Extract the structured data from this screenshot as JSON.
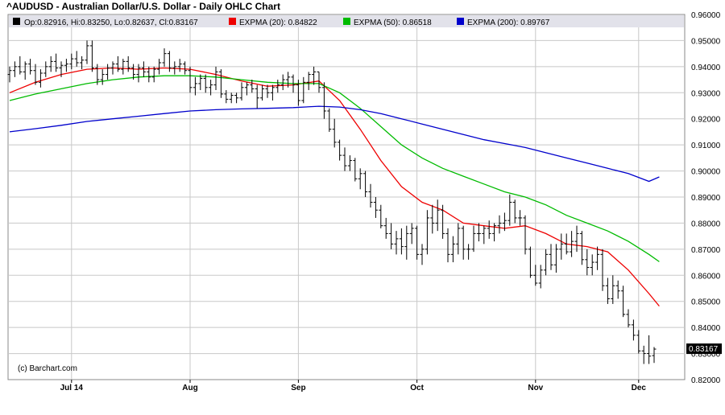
{
  "page_title": "^AUDUSD - Australian Dollar/U.S. Dollar - Daily OHLC Chart",
  "legend": {
    "ohlc_text": "Op:0.82916, Hi:0.83250, Lo:0.82637, Cl:0.83167",
    "ema20_text": "EXPMA (20): 0.84822",
    "ema50_text": "EXPMA (50): 0.86518",
    "ema200_text": "EXPMA (200): 0.89767"
  },
  "credit": "(c) Barchart.com",
  "last_price_label": "0.83167",
  "colors": {
    "background": "#ffffff",
    "legend_background": "#e2e2ea",
    "grid": "#c8c8c8",
    "ohlc": "#000000",
    "ema20": "#ee0000",
    "ema50": "#00bb00",
    "ema200": "#0000cc"
  },
  "chart_data": {
    "type": "line",
    "subtype": "ohlc",
    "title": "^AUDUSD - Australian Dollar/U.S. Dollar - Daily OHLC Chart",
    "x_tick_labels": [
      "Jul 14",
      "Aug",
      "Sep",
      "Oct",
      "Nov",
      "Dec"
    ],
    "x_tick_positions": [
      12,
      35,
      56,
      79,
      102,
      122
    ],
    "y_ticks": [
      "0.96000",
      "0.95000",
      "0.94000",
      "0.93000",
      "0.92000",
      "0.91000",
      "0.90000",
      "0.89000",
      "0.88000",
      "0.87000",
      "0.86000",
      "0.85000",
      "0.84000",
      "0.83000",
      "0.82000"
    ],
    "ylim": [
      0.82,
      0.96
    ],
    "grid": true,
    "ohlc": [
      [
        0.937,
        0.94,
        0.934,
        0.9385
      ],
      [
        0.9385,
        0.942,
        0.936,
        0.94
      ],
      [
        0.94,
        0.944,
        0.937,
        0.938
      ],
      [
        0.938,
        0.942,
        0.935,
        0.941
      ],
      [
        0.941,
        0.943,
        0.937,
        0.9385
      ],
      [
        0.9385,
        0.941,
        0.933,
        0.934
      ],
      [
        0.934,
        0.939,
        0.932,
        0.9375
      ],
      [
        0.9375,
        0.942,
        0.936,
        0.94
      ],
      [
        0.94,
        0.944,
        0.938,
        0.942
      ],
      [
        0.942,
        0.945,
        0.938,
        0.9395
      ],
      [
        0.9395,
        0.942,
        0.936,
        0.9405
      ],
      [
        0.9405,
        0.943,
        0.938,
        0.941
      ],
      [
        0.941,
        0.945,
        0.939,
        0.943
      ],
      [
        0.943,
        0.946,
        0.94,
        0.9415
      ],
      [
        0.9415,
        0.944,
        0.939,
        0.9425
      ],
      [
        0.9425,
        0.95,
        0.941,
        0.948
      ],
      [
        0.948,
        0.95,
        0.938,
        0.9395
      ],
      [
        0.9395,
        0.941,
        0.933,
        0.935
      ],
      [
        0.935,
        0.939,
        0.933,
        0.937
      ],
      [
        0.937,
        0.941,
        0.935,
        0.9395
      ],
      [
        0.9395,
        0.942,
        0.937,
        0.941
      ],
      [
        0.941,
        0.944,
        0.938,
        0.939
      ],
      [
        0.939,
        0.943,
        0.937,
        0.942
      ],
      [
        0.942,
        0.944,
        0.938,
        0.9395
      ],
      [
        0.9395,
        0.941,
        0.935,
        0.937
      ],
      [
        0.937,
        0.941,
        0.934,
        0.9395
      ],
      [
        0.9395,
        0.942,
        0.936,
        0.938
      ],
      [
        0.938,
        0.94,
        0.934,
        0.936
      ],
      [
        0.936,
        0.94,
        0.934,
        0.939
      ],
      [
        0.939,
        0.943,
        0.937,
        0.9415
      ],
      [
        0.9415,
        0.947,
        0.94,
        0.945
      ],
      [
        0.945,
        0.946,
        0.938,
        0.9395
      ],
      [
        0.9395,
        0.942,
        0.937,
        0.94
      ],
      [
        0.94,
        0.943,
        0.938,
        0.941
      ],
      [
        0.941,
        0.942,
        0.937,
        0.9385
      ],
      [
        0.9385,
        0.94,
        0.93,
        0.932
      ],
      [
        0.932,
        0.936,
        0.929,
        0.9335
      ],
      [
        0.9335,
        0.937,
        0.931,
        0.9355
      ],
      [
        0.9355,
        0.937,
        0.93,
        0.932
      ],
      [
        0.932,
        0.935,
        0.929,
        0.933
      ],
      [
        0.933,
        0.94,
        0.931,
        0.938
      ],
      [
        0.938,
        0.939,
        0.928,
        0.9295
      ],
      [
        0.9295,
        0.931,
        0.926,
        0.9275
      ],
      [
        0.9275,
        0.93,
        0.926,
        0.929
      ],
      [
        0.929,
        0.93,
        0.926,
        0.928
      ],
      [
        0.928,
        0.934,
        0.927,
        0.932
      ],
      [
        0.932,
        0.934,
        0.929,
        0.933
      ],
      [
        0.933,
        0.935,
        0.93,
        0.9315
      ],
      [
        0.9315,
        0.933,
        0.924,
        0.928
      ],
      [
        0.928,
        0.933,
        0.927,
        0.9315
      ],
      [
        0.9315,
        0.933,
        0.928,
        0.93
      ],
      [
        0.93,
        0.933,
        0.927,
        0.932
      ],
      [
        0.932,
        0.935,
        0.93,
        0.933
      ],
      [
        0.933,
        0.937,
        0.931,
        0.935
      ],
      [
        0.935,
        0.938,
        0.932,
        0.936
      ],
      [
        0.936,
        0.937,
        0.93,
        0.933
      ],
      [
        0.933,
        0.935,
        0.925,
        0.927
      ],
      [
        0.927,
        0.936,
        0.926,
        0.934
      ],
      [
        0.934,
        0.938,
        0.931,
        0.937
      ],
      [
        0.937,
        0.94,
        0.933,
        0.938
      ],
      [
        0.938,
        0.938,
        0.93,
        0.932
      ],
      [
        0.932,
        0.934,
        0.92,
        0.923
      ],
      [
        0.923,
        0.924,
        0.915,
        0.916
      ],
      [
        0.916,
        0.92,
        0.909,
        0.911
      ],
      [
        0.911,
        0.912,
        0.904,
        0.906
      ],
      [
        0.906,
        0.909,
        0.9,
        0.902
      ],
      [
        0.902,
        0.906,
        0.9,
        0.904
      ],
      [
        0.904,
        0.905,
        0.896,
        0.897
      ],
      [
        0.897,
        0.901,
        0.893,
        0.899
      ],
      [
        0.899,
        0.9,
        0.89,
        0.892
      ],
      [
        0.892,
        0.895,
        0.886,
        0.888
      ],
      [
        0.888,
        0.89,
        0.882,
        0.885
      ],
      [
        0.885,
        0.887,
        0.878,
        0.879
      ],
      [
        0.879,
        0.882,
        0.874,
        0.876
      ],
      [
        0.876,
        0.88,
        0.87,
        0.872
      ],
      [
        0.872,
        0.877,
        0.868,
        0.874
      ],
      [
        0.874,
        0.878,
        0.868,
        0.871
      ],
      [
        0.871,
        0.879,
        0.866,
        0.876
      ],
      [
        0.876,
        0.88,
        0.872,
        0.878
      ],
      [
        0.878,
        0.879,
        0.866,
        0.868
      ],
      [
        0.868,
        0.872,
        0.864,
        0.87
      ],
      [
        0.87,
        0.885,
        0.868,
        0.882
      ],
      [
        0.882,
        0.887,
        0.876,
        0.88
      ],
      [
        0.88,
        0.889,
        0.877,
        0.885
      ],
      [
        0.885,
        0.887,
        0.874,
        0.876
      ],
      [
        0.876,
        0.878,
        0.865,
        0.868
      ],
      [
        0.868,
        0.875,
        0.865,
        0.872
      ],
      [
        0.872,
        0.88,
        0.868,
        0.878
      ],
      [
        0.878,
        0.879,
        0.866,
        0.87
      ],
      [
        0.87,
        0.872,
        0.866,
        0.87
      ],
      [
        0.87,
        0.879,
        0.869,
        0.876
      ],
      [
        0.876,
        0.88,
        0.873,
        0.876
      ],
      [
        0.876,
        0.879,
        0.872,
        0.878
      ],
      [
        0.878,
        0.881,
        0.874,
        0.876
      ],
      [
        0.876,
        0.88,
        0.873,
        0.879
      ],
      [
        0.879,
        0.883,
        0.876,
        0.88
      ],
      [
        0.88,
        0.884,
        0.877,
        0.881
      ],
      [
        0.881,
        0.891,
        0.879,
        0.888
      ],
      [
        0.888,
        0.889,
        0.88,
        0.882
      ],
      [
        0.882,
        0.885,
        0.879,
        0.882
      ],
      [
        0.882,
        0.883,
        0.868,
        0.87
      ],
      [
        0.87,
        0.871,
        0.859,
        0.86
      ],
      [
        0.86,
        0.864,
        0.856,
        0.857
      ],
      [
        0.857,
        0.864,
        0.855,
        0.862
      ],
      [
        0.862,
        0.87,
        0.86,
        0.868
      ],
      [
        0.868,
        0.872,
        0.862,
        0.864
      ],
      [
        0.864,
        0.872,
        0.861,
        0.87
      ],
      [
        0.87,
        0.876,
        0.866,
        0.872
      ],
      [
        0.872,
        0.876,
        0.868,
        0.869
      ],
      [
        0.869,
        0.877,
        0.867,
        0.873
      ],
      [
        0.873,
        0.879,
        0.869,
        0.876
      ],
      [
        0.876,
        0.877,
        0.864,
        0.866
      ],
      [
        0.866,
        0.87,
        0.86,
        0.863
      ],
      [
        0.863,
        0.868,
        0.86,
        0.865
      ],
      [
        0.865,
        0.871,
        0.862,
        0.868
      ],
      [
        0.868,
        0.87,
        0.854,
        0.856
      ],
      [
        0.856,
        0.859,
        0.849,
        0.851
      ],
      [
        0.851,
        0.86,
        0.849,
        0.856
      ],
      [
        0.856,
        0.858,
        0.851,
        0.854
      ],
      [
        0.854,
        0.856,
        0.844,
        0.845
      ],
      [
        0.845,
        0.847,
        0.84,
        0.841
      ],
      [
        0.841,
        0.843,
        0.835,
        0.837
      ],
      [
        0.837,
        0.839,
        0.83,
        0.831
      ],
      [
        0.831,
        0.833,
        0.826,
        0.83
      ],
      [
        0.83,
        0.837,
        0.826,
        0.829
      ],
      [
        0.8292,
        0.8325,
        0.8264,
        0.8317
      ]
    ],
    "series": [
      {
        "name": "EXPMA (20)",
        "color": "#ee0000",
        "x": [
          0,
          5,
          10,
          15,
          20,
          25,
          30,
          35,
          40,
          45,
          50,
          55,
          60,
          64,
          68,
          72,
          76,
          80,
          84,
          88,
          92,
          96,
          100,
          104,
          108,
          112,
          116,
          120,
          124,
          126
        ],
        "values": [
          0.93,
          0.934,
          0.937,
          0.939,
          0.9395,
          0.939,
          0.9395,
          0.939,
          0.937,
          0.9345,
          0.9325,
          0.933,
          0.9345,
          0.927,
          0.916,
          0.904,
          0.894,
          0.888,
          0.885,
          0.88,
          0.879,
          0.878,
          0.879,
          0.876,
          0.872,
          0.871,
          0.869,
          0.862,
          0.853,
          0.8482
        ]
      },
      {
        "name": "EXPMA (50)",
        "color": "#00bb00",
        "x": [
          0,
          5,
          10,
          15,
          20,
          25,
          30,
          35,
          40,
          45,
          50,
          55,
          60,
          64,
          68,
          72,
          76,
          80,
          84,
          88,
          92,
          96,
          100,
          104,
          108,
          112,
          116,
          120,
          124,
          126
        ],
        "values": [
          0.927,
          0.9295,
          0.9315,
          0.9335,
          0.935,
          0.936,
          0.9365,
          0.9365,
          0.936,
          0.935,
          0.934,
          0.9335,
          0.9335,
          0.93,
          0.924,
          0.917,
          0.91,
          0.905,
          0.901,
          0.898,
          0.895,
          0.892,
          0.89,
          0.887,
          0.883,
          0.88,
          0.877,
          0.873,
          0.868,
          0.8652
        ]
      },
      {
        "name": "EXPMA (200)",
        "color": "#0000cc",
        "x": [
          0,
          5,
          10,
          15,
          20,
          25,
          30,
          35,
          40,
          45,
          50,
          55,
          60,
          64,
          68,
          72,
          76,
          80,
          84,
          88,
          92,
          96,
          100,
          104,
          108,
          112,
          116,
          120,
          124,
          126
        ],
        "values": [
          0.915,
          0.9162,
          0.9175,
          0.919,
          0.92,
          0.921,
          0.922,
          0.923,
          0.9235,
          0.9238,
          0.924,
          0.9243,
          0.9248,
          0.9245,
          0.9235,
          0.922,
          0.92,
          0.918,
          0.916,
          0.914,
          0.912,
          0.9105,
          0.909,
          0.907,
          0.905,
          0.903,
          0.901,
          0.899,
          0.896,
          0.8977
        ]
      }
    ]
  }
}
